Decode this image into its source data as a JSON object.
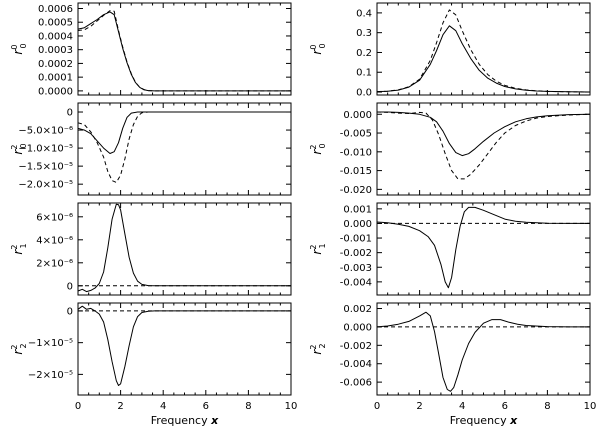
{
  "chart_data": [
    {
      "id": "L1",
      "type": "line",
      "column": 0,
      "row": 0,
      "ylabel": {
        "main": "r",
        "sup": "0",
        "sub": "0"
      },
      "xlim": [
        0,
        10
      ],
      "ylim": [
        -3e-05,
        0.00064
      ],
      "xticks": [
        0,
        2,
        4,
        6,
        8,
        10
      ],
      "xticklabels": [
        "0",
        "2",
        "4",
        "6",
        "8",
        "10"
      ],
      "show_xticklabels": false,
      "yticks": [
        0,
        0.0001,
        0.0002,
        0.0003,
        0.0004,
        0.0005,
        0.0006
      ],
      "yticklabels": [
        "0.0000",
        "0.0001",
        "0.0002",
        "0.0003",
        "0.0004",
        "0.0005",
        "0.0006"
      ],
      "series": [
        {
          "name": "solid",
          "style": "solid",
          "x": [
            0,
            0.3,
            0.6,
            0.9,
            1.2,
            1.5,
            1.7,
            1.9,
            2.1,
            2.3,
            2.5,
            2.7,
            2.9,
            3.1,
            3.3,
            3.6,
            4,
            10
          ],
          "y": [
            0.00045,
            0.00046,
            0.00049,
            0.00052,
            0.000555,
            0.000575,
            0.000555,
            0.00043,
            0.00031,
            0.000205,
            0.00012,
            6e-05,
            2.5e-05,
            8e-06,
            2e-06,
            0,
            0,
            0
          ]
        },
        {
          "name": "dashed",
          "style": "dashed",
          "x": [
            0,
            0.3,
            0.6,
            0.9,
            1.2,
            1.5,
            1.7,
            1.9,
            2.1,
            2.3,
            2.5,
            2.7,
            2.9,
            3.1,
            3.3,
            3.6,
            4,
            10
          ],
          "y": [
            0.00044,
            0.000445,
            0.00047,
            0.00051,
            0.00055,
            0.000585,
            0.00058,
            0.00044,
            0.00032,
            0.00021,
            0.000125,
            6.2e-05,
            2.6e-05,
            9e-06,
            2e-06,
            0,
            0,
            0
          ]
        }
      ]
    },
    {
      "id": "L2",
      "type": "line",
      "column": 0,
      "row": 1,
      "ylabel": {
        "main": "r",
        "sup": "2",
        "sub": "0"
      },
      "xlim": [
        0,
        10
      ],
      "ylim": [
        -2.3e-05,
        2.5e-06
      ],
      "xticks": [
        0,
        2,
        4,
        6,
        8,
        10
      ],
      "xticklabels": [
        "0",
        "2",
        "4",
        "6",
        "8",
        "10"
      ],
      "show_xticklabels": false,
      "yticks": [
        0,
        -5e-06,
        -1e-05,
        -1.5e-05,
        -2e-05
      ],
      "yticklabels": [
        "0",
        "−5.0×10⁻⁶",
        "−1.0×10⁻⁵",
        "−1.5×10⁻⁵",
        "−2.0×10⁻⁵"
      ],
      "series": [
        {
          "name": "solid",
          "style": "solid",
          "x": [
            0,
            0.3,
            0.6,
            0.9,
            1.2,
            1.5,
            1.7,
            1.9,
            2.1,
            2.3,
            2.5,
            2.8,
            3.1,
            3.5,
            4,
            10
          ],
          "y": [
            -4.5e-06,
            -5e-06,
            -6e-06,
            -8e-06,
            -1e-05,
            -1.15e-05,
            -1.1e-05,
            -8.5e-06,
            -4.5e-06,
            -1.5e-06,
            -3e-07,
            0,
            0,
            0,
            0,
            0
          ]
        },
        {
          "name": "dashed",
          "style": "dashed",
          "x": [
            0,
            0.3,
            0.6,
            0.9,
            1.2,
            1.4,
            1.6,
            1.8,
            2.0,
            2.2,
            2.4,
            2.6,
            2.8,
            3.0,
            3.3,
            4,
            10
          ],
          "y": [
            -3e-06,
            -3.5e-06,
            -5.5e-06,
            -8.5e-06,
            -1.25e-05,
            -1.65e-05,
            -1.9e-05,
            -1.95e-05,
            -1.75e-05,
            -1.3e-05,
            -7.5e-06,
            -3.5e-06,
            -1.2e-06,
            -2e-07,
            0,
            0,
            0
          ]
        }
      ]
    },
    {
      "id": "L3",
      "type": "line",
      "column": 0,
      "row": 2,
      "ylabel": {
        "main": "r",
        "sup": "2",
        "sub": "1"
      },
      "xlim": [
        0,
        10
      ],
      "ylim": [
        -8e-07,
        7.2e-06
      ],
      "xticks": [
        0,
        2,
        4,
        6,
        8,
        10
      ],
      "xticklabels": [
        "0",
        "2",
        "4",
        "6",
        "8",
        "10"
      ],
      "show_xticklabels": false,
      "yticks": [
        0,
        2e-06,
        4e-06,
        6e-06
      ],
      "yticklabels": [
        "0",
        "2×10⁻⁶",
        "4×10⁻⁶",
        "6×10⁻⁶"
      ],
      "series": [
        {
          "name": "solid",
          "style": "solid",
          "x": [
            0,
            0.2,
            0.4,
            0.6,
            0.8,
            1.0,
            1.2,
            1.4,
            1.6,
            1.8,
            1.9,
            2.0,
            2.2,
            2.4,
            2.6,
            2.8,
            3.0,
            3.3,
            3.6,
            4,
            10
          ],
          "y": [
            -4.5e-07,
            -3e-07,
            -5e-07,
            -4e-07,
            -2e-07,
            2e-07,
            1.2e-06,
            3.3e-06,
            5.8e-06,
            7.1e-06,
            7.05e-06,
            6.6e-06,
            4.5e-06,
            2.5e-06,
            1.1e-06,
            4e-07,
            1.2e-07,
            2e-08,
            0,
            0,
            0
          ]
        },
        {
          "name": "dashed",
          "style": "dashed",
          "x": [
            0,
            10
          ],
          "y": [
            0,
            0
          ]
        }
      ]
    },
    {
      "id": "L4",
      "type": "line",
      "column": 0,
      "row": 3,
      "ylabel": {
        "main": "r",
        "sup": "2",
        "sub": "2"
      },
      "xlim": [
        0,
        10
      ],
      "ylim": [
        -2.65e-05,
        2.5e-06
      ],
      "xticks": [
        0,
        2,
        4,
        6,
        8,
        10
      ],
      "xticklabels": [
        "0",
        "2",
        "4",
        "6",
        "8",
        "10"
      ],
      "show_xticklabels": true,
      "yticks": [
        0,
        -1e-05,
        -2e-05
      ],
      "yticklabels": [
        "0",
        "−1×10⁻⁵",
        "−2×10⁻⁵"
      ],
      "xlabel": {
        "text": "Frequency ",
        "var": "x"
      },
      "series": [
        {
          "name": "solid",
          "style": "solid",
          "x": [
            0,
            0.2,
            0.4,
            0.6,
            0.8,
            1.0,
            1.2,
            1.4,
            1.6,
            1.8,
            1.9,
            2.0,
            2.2,
            2.4,
            2.6,
            2.8,
            3.0,
            3.3,
            3.6,
            4,
            10
          ],
          "y": [
            5e-07,
            1.5e-06,
            5e-07,
            8e-07,
            0,
            -1e-06,
            -3.5e-06,
            -9e-06,
            -1.6e-05,
            -2.2e-05,
            -2.35e-05,
            -2.3e-05,
            -1.75e-05,
            -1.1e-05,
            -5e-06,
            -1.8e-06,
            -5e-07,
            -1e-07,
            0,
            0,
            0
          ]
        },
        {
          "name": "dashed",
          "style": "dashed",
          "x": [
            0,
            10
          ],
          "y": [
            0,
            0
          ]
        }
      ]
    },
    {
      "id": "R1",
      "type": "line",
      "column": 1,
      "row": 0,
      "ylabel": {
        "main": "r",
        "sup": "0",
        "sub": "0"
      },
      "xlim": [
        0,
        10
      ],
      "ylim": [
        -0.015,
        0.45
      ],
      "xticks": [
        0,
        2,
        4,
        6,
        8,
        10
      ],
      "xticklabels": [
        "0",
        "2",
        "4",
        "6",
        "8",
        "10"
      ],
      "show_xticklabels": false,
      "yticks": [
        0,
        0.1,
        0.2,
        0.3,
        0.4
      ],
      "yticklabels": [
        "0.0",
        "0.1",
        "0.2",
        "0.3",
        "0.4"
      ],
      "series": [
        {
          "name": "solid",
          "style": "solid",
          "x": [
            0,
            0.5,
            1,
            1.5,
            2,
            2.5,
            2.8,
            3.1,
            3.4,
            3.7,
            4,
            4.4,
            4.8,
            5.2,
            5.6,
            6,
            6.5,
            7,
            7.5,
            8,
            9,
            10
          ],
          "y": [
            0.002,
            0.004,
            0.01,
            0.025,
            0.06,
            0.14,
            0.21,
            0.29,
            0.335,
            0.31,
            0.245,
            0.17,
            0.11,
            0.07,
            0.045,
            0.028,
            0.016,
            0.009,
            0.005,
            0.003,
            0.001,
            0
          ]
        },
        {
          "name": "dashed",
          "style": "dashed",
          "x": [
            0,
            0.5,
            1,
            1.5,
            2,
            2.5,
            2.8,
            3.1,
            3.4,
            3.7,
            4,
            4.4,
            4.8,
            5.2,
            5.6,
            6,
            6.5,
            7,
            7.5,
            8,
            9,
            10
          ],
          "y": [
            0.002,
            0.004,
            0.011,
            0.027,
            0.065,
            0.16,
            0.25,
            0.35,
            0.415,
            0.39,
            0.31,
            0.215,
            0.14,
            0.088,
            0.055,
            0.034,
            0.019,
            0.011,
            0.006,
            0.003,
            0.001,
            0
          ]
        }
      ]
    },
    {
      "id": "R2",
      "type": "line",
      "column": 1,
      "row": 1,
      "ylabel": {
        "main": "r",
        "sup": "2",
        "sub": "0"
      },
      "xlim": [
        0,
        10
      ],
      "ylim": [
        -0.0215,
        0.003
      ],
      "xticks": [
        0,
        2,
        4,
        6,
        8,
        10
      ],
      "xticklabels": [
        "0",
        "2",
        "4",
        "6",
        "8",
        "10"
      ],
      "show_xticklabels": false,
      "yticks": [
        0,
        -0.005,
        -0.01,
        -0.015,
        -0.02
      ],
      "yticklabels": [
        "0.000",
        "-0.005",
        "-0.010",
        "-0.015",
        "-0.020"
      ],
      "series": [
        {
          "name": "solid",
          "style": "solid",
          "x": [
            0,
            0.5,
            1,
            1.5,
            2,
            2.5,
            2.8,
            3.1,
            3.4,
            3.7,
            4,
            4.3,
            4.6,
            5,
            5.5,
            6,
            6.5,
            7,
            7.5,
            8,
            9,
            10
          ],
          "y": [
            0.0006,
            0.0006,
            0.0005,
            0.0003,
            0,
            -0.0008,
            -0.002,
            -0.0045,
            -0.0078,
            -0.0102,
            -0.011,
            -0.0105,
            -0.0092,
            -0.0072,
            -0.005,
            -0.0033,
            -0.002,
            -0.0012,
            -0.0007,
            -0.0004,
            -0.0001,
            0
          ]
        },
        {
          "name": "dashed",
          "style": "dashed",
          "x": [
            0,
            0.5,
            1,
            1.5,
            2,
            2.3,
            2.6,
            2.9,
            3.2,
            3.5,
            3.8,
            4.1,
            4.4,
            4.8,
            5.2,
            5.6,
            6,
            6.5,
            7,
            7.5,
            8,
            9,
            10
          ],
          "y": [
            0.0006,
            0.0005,
            0.0003,
            0.0002,
            0.0005,
            0.0003,
            -0.0015,
            -0.0055,
            -0.0105,
            -0.015,
            -0.0172,
            -0.0172,
            -0.016,
            -0.0135,
            -0.0105,
            -0.0075,
            -0.005,
            -0.003,
            -0.0018,
            -0.001,
            -0.0006,
            -0.0002,
            0
          ]
        }
      ]
    },
    {
      "id": "R3",
      "type": "line",
      "column": 1,
      "row": 2,
      "ylabel": {
        "main": "r",
        "sup": "2",
        "sub": "1"
      },
      "xlim": [
        0,
        10
      ],
      "ylim": [
        -0.0049,
        0.0014
      ],
      "xticks": [
        0,
        2,
        4,
        6,
        8,
        10
      ],
      "xticklabels": [
        "0",
        "2",
        "4",
        "6",
        "8",
        "10"
      ],
      "show_xticklabels": false,
      "yticks": [
        0.001,
        0,
        -0.001,
        -0.002,
        -0.003,
        -0.004
      ],
      "yticklabels": [
        "0.001",
        "0.000",
        "-0.001",
        "-0.002",
        "-0.003",
        "-0.004"
      ],
      "series": [
        {
          "name": "solid",
          "style": "solid",
          "x": [
            0,
            0.5,
            1,
            1.5,
            2,
            2.4,
            2.7,
            3.0,
            3.2,
            3.35,
            3.5,
            3.7,
            3.9,
            4.1,
            4.3,
            4.6,
            5.0,
            5.5,
            6,
            6.5,
            7,
            8,
            9,
            10
          ],
          "y": [
            0.0001,
            5e-05,
            -5e-05,
            -0.0002,
            -0.0005,
            -0.0009,
            -0.0015,
            -0.0028,
            -0.004,
            -0.0044,
            -0.0037,
            -0.0018,
            -0.0002,
            0.0008,
            0.0011,
            0.0011,
            0.0009,
            0.0006,
            0.0003,
            0.00015,
            8e-05,
            2e-05,
            0,
            0
          ]
        },
        {
          "name": "dashed",
          "style": "dashed",
          "x": [
            0,
            10
          ],
          "y": [
            0,
            0
          ]
        }
      ]
    },
    {
      "id": "R4",
      "type": "line",
      "column": 1,
      "row": 3,
      "ylabel": {
        "main": "r",
        "sup": "2",
        "sub": "2"
      },
      "xlim": [
        0,
        10
      ],
      "ylim": [
        -0.0074,
        0.0026
      ],
      "xticks": [
        0,
        2,
        4,
        6,
        8,
        10
      ],
      "xticklabels": [
        "0",
        "2",
        "4",
        "6",
        "8",
        "10"
      ],
      "show_xticklabels": true,
      "yticks": [
        0.002,
        0,
        -0.002,
        -0.004,
        -0.006
      ],
      "yticklabels": [
        "0.002",
        "0.000",
        "-0.002",
        "-0.004",
        "-0.006"
      ],
      "xlabel": {
        "text": "Frequency ",
        "var": "x"
      },
      "series": [
        {
          "name": "solid",
          "style": "solid",
          "x": [
            0,
            0.5,
            1,
            1.5,
            2,
            2.3,
            2.5,
            2.7,
            2.9,
            3.1,
            3.3,
            3.45,
            3.6,
            3.8,
            4.0,
            4.3,
            4.6,
            5.0,
            5.4,
            5.8,
            6.2,
            6.6,
            7,
            8,
            9,
            10
          ],
          "y": [
            0,
            0.0001,
            0.0003,
            0.0006,
            0.0012,
            0.0016,
            0.0012,
            -0.0005,
            -0.003,
            -0.0055,
            -0.0068,
            -0.007,
            -0.0066,
            -0.0052,
            -0.0036,
            -0.0018,
            -0.0006,
            0.0004,
            0.0008,
            0.0008,
            0.0005,
            0.0003,
            0.00015,
            3e-05,
            0,
            0
          ]
        },
        {
          "name": "dashed",
          "style": "dashed",
          "x": [
            0,
            10
          ],
          "y": [
            0,
            0
          ]
        }
      ]
    }
  ]
}
